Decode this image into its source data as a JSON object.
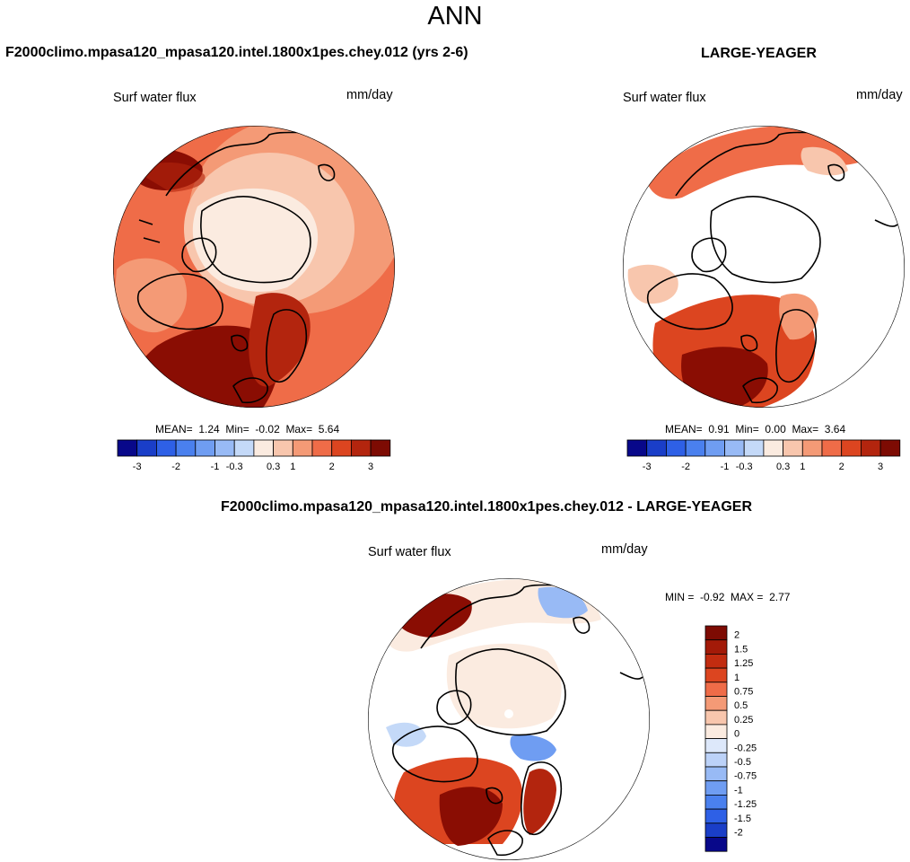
{
  "header": {
    "title": "ANN"
  },
  "panels": [
    {
      "title": "F2000climo.mpasa120_mpasa120.intel.1800x1pes.chey.012 (yrs 2-6)",
      "label_left": "Surf water flux",
      "label_right": "mm/day",
      "mean_label": "MEAN=",
      "mean": "1.24",
      "min_label": "Min=",
      "min": "-0.02",
      "max_label": "Max=",
      "max": "5.64"
    },
    {
      "title": "LARGE-YEAGER",
      "label_left": "Surf water flux",
      "label_right": "mm/day",
      "mean_label": "MEAN=",
      "mean": "0.91",
      "min_label": "Min=",
      "min": "0.00",
      "max_label": "Max=",
      "max": "3.64"
    },
    {
      "title": "F2000climo.mpasa120_mpasa120.intel.1800x1pes.chey.012 - LARGE-YEAGER",
      "label_left": "Surf water flux",
      "label_right": "mm/day",
      "min_label": "MIN =",
      "min": "-0.92",
      "max_label": "MAX =",
      "max": "2.77"
    }
  ],
  "colorbar_h": {
    "colors": [
      "#08088a",
      "#1a3ec8",
      "#2e60e6",
      "#4a80ee",
      "#6f9df2",
      "#98baf5",
      "#c4d9f8",
      "#fbebe0",
      "#f8c6ad",
      "#f49a76",
      "#ef6c48",
      "#dc4520",
      "#b3250e",
      "#7d0b03"
    ],
    "tick_labels": [
      "-3",
      "-2",
      "-1",
      "-0.3",
      "0.3",
      "1",
      "2",
      "3"
    ]
  },
  "colorbar_v": {
    "colors": [
      "#7d0b03",
      "#a31a08",
      "#c22c10",
      "#dc4520",
      "#ef6c48",
      "#f49a76",
      "#f8c6ad",
      "#fbebe0",
      "#dde8fa",
      "#bcd2f8",
      "#98baf5",
      "#6f9df2",
      "#4a80ee",
      "#2e60e6",
      "#1a3ec8",
      "#08088a"
    ],
    "tick_labels": [
      "2",
      "1.5",
      "1.25",
      "1",
      "0.75",
      "0.5",
      "0.25",
      "0",
      "-0.25",
      "-0.5",
      "-0.75",
      "-1",
      "-1.25",
      "-1.5",
      "-2"
    ]
  },
  "chart_data": [
    {
      "type": "heatmap",
      "title": "F2000climo.mpasa120_mpasa120.intel.1800x1pes.chey.012 (yrs 2-6)",
      "variable": "Surf water flux",
      "units": "mm/day",
      "mean": 1.24,
      "min": -0.02,
      "max": 5.64,
      "levels": [
        -3,
        -2,
        -1,
        -0.3,
        0.3,
        1,
        2,
        3
      ]
    },
    {
      "type": "heatmap",
      "title": "LARGE-YEAGER",
      "variable": "Surf water flux",
      "units": "mm/day",
      "mean": 0.91,
      "min": 0.0,
      "max": 3.64,
      "levels": [
        -3,
        -2,
        -1,
        -0.3,
        0.3,
        1,
        2,
        3
      ]
    },
    {
      "type": "heatmap",
      "title": "F2000climo.mpasa120_mpasa120.intel.1800x1pes.chey.012 - LARGE-YEAGER",
      "variable": "Surf water flux",
      "units": "mm/day",
      "min": -0.92,
      "max": 2.77,
      "levels": [
        -2,
        -1.5,
        -1.25,
        -1,
        -0.75,
        -0.5,
        -0.25,
        0,
        0.25,
        0.5,
        0.75,
        1,
        1.25,
        1.5,
        2
      ]
    }
  ]
}
